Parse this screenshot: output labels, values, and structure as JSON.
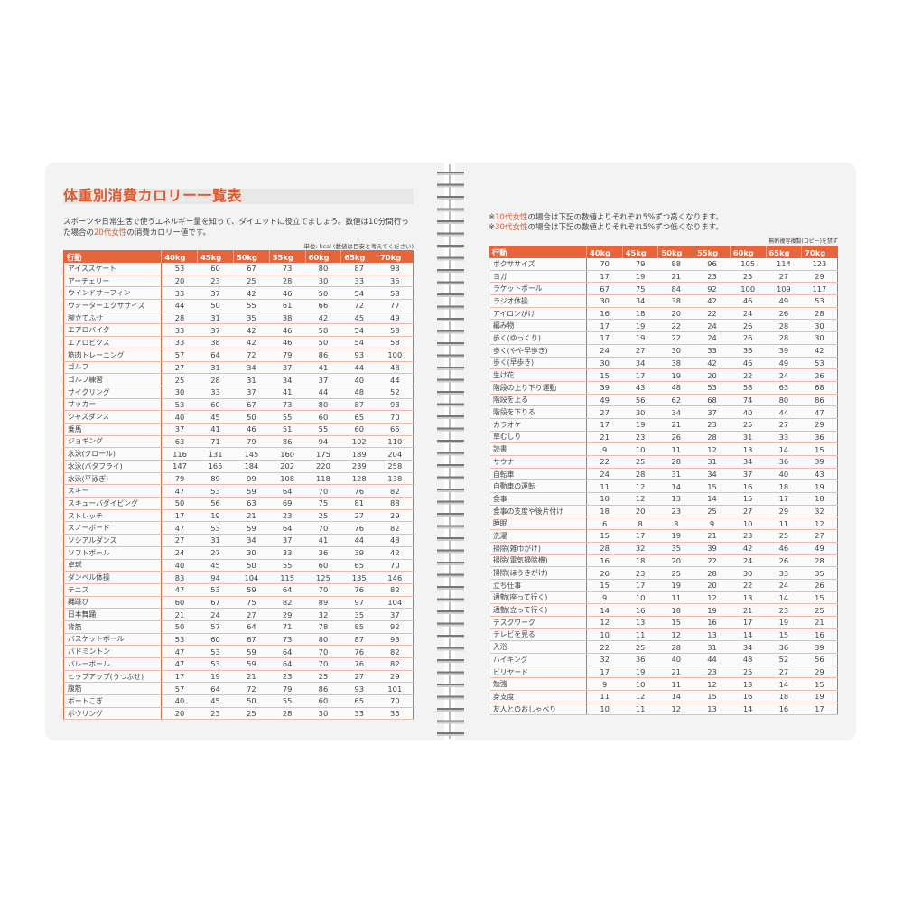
{
  "left_page": {
    "title": "体重別消費カロリー一覧表",
    "intro": [
      "スポーツや日常生活で使うエネルギー量を知って、ダイエットに役立てましょう。数値は10分間行った場合の",
      "20代女性",
      "の消費カロリー値です。"
    ],
    "unit": "単位: kcal (数値は目安と考えてください)"
  },
  "right_page": {
    "notes": [
      [
        "※",
        "10代女性",
        "の場合は下記の数値よりそれぞれ5%ずつ高くなります。"
      ],
      [
        "※",
        "30代女性",
        "の場合は下記の数値よりそれぞれ5%ずつ低くなります。"
      ]
    ],
    "copyright": "無断複写複製(コピー)を禁ず"
  },
  "left_table": {
    "header": [
      "行動",
      "40kg",
      "45kg",
      "50kg",
      "55kg",
      "60kg",
      "65kg",
      "70kg"
    ],
    "rows": [
      [
        "アイススケート",
        53,
        60,
        67,
        73,
        80,
        87,
        93
      ],
      [
        "アーチェリー",
        20,
        23,
        25,
        28,
        30,
        33,
        35
      ],
      [
        "ウインドサーフィン",
        33,
        37,
        42,
        46,
        50,
        54,
        58
      ],
      [
        "ウォーターエクササイズ",
        44,
        50,
        55,
        61,
        66,
        72,
        77
      ],
      [
        "腕立てふせ",
        28,
        31,
        35,
        38,
        42,
        45,
        49
      ],
      [
        "エアロバイク",
        33,
        37,
        42,
        46,
        50,
        54,
        58
      ],
      [
        "エアロビクス",
        33,
        38,
        42,
        46,
        50,
        54,
        58
      ],
      [
        "筋肉トレーニング",
        57,
        64,
        72,
        79,
        86,
        93,
        100
      ],
      [
        "ゴルフ",
        27,
        31,
        34,
        37,
        41,
        44,
        48
      ],
      [
        "ゴルフ練習",
        25,
        28,
        31,
        34,
        37,
        40,
        44
      ],
      [
        "サイクリング",
        30,
        33,
        37,
        41,
        44,
        48,
        52
      ],
      [
        "サッカー",
        53,
        60,
        67,
        73,
        80,
        87,
        93
      ],
      [
        "ジャズダンス",
        40,
        45,
        50,
        55,
        60,
        65,
        70
      ],
      [
        "乗馬",
        37,
        41,
        46,
        51,
        55,
        60,
        65
      ],
      [
        "ジョギング",
        63,
        71,
        79,
        86,
        94,
        102,
        110
      ],
      [
        "水泳(クロール)",
        116,
        131,
        145,
        160,
        175,
        189,
        204
      ],
      [
        "水泳(バタフライ)",
        147,
        165,
        184,
        202,
        220,
        239,
        258
      ],
      [
        "水泳(平泳ぎ)",
        79,
        89,
        99,
        108,
        118,
        128,
        138
      ],
      [
        "スキー",
        47,
        53,
        59,
        64,
        70,
        76,
        82
      ],
      [
        "スキューバダイビング",
        50,
        56,
        63,
        69,
        75,
        81,
        88
      ],
      [
        "ストレッチ",
        17,
        19,
        21,
        23,
        25,
        27,
        29
      ],
      [
        "スノーボード",
        47,
        53,
        59,
        64,
        70,
        76,
        82
      ],
      [
        "ソシアルダンス",
        27,
        31,
        34,
        37,
        41,
        44,
        48
      ],
      [
        "ソフトボール",
        24,
        27,
        30,
        33,
        36,
        39,
        42
      ],
      [
        "卓球",
        40,
        45,
        50,
        55,
        60,
        65,
        70
      ],
      [
        "ダンベル体操",
        83,
        94,
        104,
        115,
        125,
        135,
        146
      ],
      [
        "テニス",
        47,
        53,
        59,
        64,
        70,
        76,
        82
      ],
      [
        "縄跳び",
        60,
        67,
        75,
        82,
        89,
        97,
        104
      ],
      [
        "日本舞踊",
        21,
        24,
        27,
        29,
        32,
        35,
        37
      ],
      [
        "背筋",
        50,
        57,
        64,
        71,
        78,
        85,
        92
      ],
      [
        "バスケットボール",
        53,
        60,
        67,
        73,
        80,
        87,
        93
      ],
      [
        "バドミントン",
        47,
        53,
        59,
        64,
        70,
        76,
        82
      ],
      [
        "バレーボール",
        47,
        53,
        59,
        64,
        70,
        76,
        82
      ],
      [
        "ヒップアップ(うつぶせ)",
        17,
        19,
        21,
        23,
        25,
        27,
        29
      ],
      [
        "腹筋",
        57,
        64,
        72,
        79,
        86,
        93,
        101
      ],
      [
        "ボートこぎ",
        40,
        45,
        50,
        55,
        60,
        65,
        70
      ],
      [
        "ボウリング",
        20,
        23,
        25,
        28,
        30,
        33,
        35
      ]
    ]
  },
  "right_table": {
    "header": [
      "行動",
      "40kg",
      "45kg",
      "50kg",
      "55kg",
      "60kg",
      "65kg",
      "70kg"
    ],
    "rows": [
      [
        "ボクササイズ",
        70,
        79,
        88,
        96,
        105,
        114,
        123
      ],
      [
        "ヨガ",
        17,
        19,
        21,
        23,
        25,
        27,
        29
      ],
      [
        "ラケットボール",
        67,
        75,
        84,
        92,
        100,
        109,
        117
      ],
      [
        "ラジオ体操",
        30,
        34,
        38,
        42,
        46,
        49,
        53
      ],
      [
        "アイロンがけ",
        16,
        18,
        20,
        22,
        24,
        26,
        28
      ],
      [
        "編み物",
        17,
        19,
        22,
        24,
        26,
        28,
        30
      ],
      [
        "歩く(ゆっくり)",
        17,
        19,
        22,
        24,
        26,
        28,
        30
      ],
      [
        "歩く(やや早歩き)",
        24,
        27,
        30,
        33,
        36,
        39,
        42
      ],
      [
        "歩く(早歩き)",
        30,
        34,
        38,
        42,
        46,
        49,
        53
      ],
      [
        "生け花",
        15,
        17,
        19,
        20,
        22,
        24,
        26
      ],
      [
        "階段の上り下り運動",
        39,
        43,
        48,
        53,
        58,
        63,
        68
      ],
      [
        "階段を上る",
        49,
        56,
        62,
        68,
        74,
        80,
        86
      ],
      [
        "階段を下りる",
        27,
        30,
        34,
        37,
        40,
        44,
        47
      ],
      [
        "カラオケ",
        17,
        19,
        21,
        23,
        25,
        27,
        29
      ],
      [
        "草むしり",
        21,
        23,
        26,
        28,
        31,
        33,
        36
      ],
      [
        "読書",
        9,
        10,
        11,
        12,
        13,
        14,
        15
      ],
      [
        "サウナ",
        22,
        25,
        28,
        31,
        34,
        36,
        39
      ],
      [
        "自転車",
        24,
        28,
        31,
        34,
        37,
        40,
        43
      ],
      [
        "自動車の運転",
        11,
        12,
        14,
        15,
        16,
        18,
        19
      ],
      [
        "食事",
        10,
        12,
        13,
        14,
        15,
        17,
        18
      ],
      [
        "食事の支度や後片付け",
        18,
        20,
        23,
        25,
        27,
        29,
        32
      ],
      [
        "睡眠",
        6,
        8,
        8,
        9,
        10,
        11,
        12
      ],
      [
        "洗濯",
        15,
        17,
        19,
        21,
        23,
        25,
        27
      ],
      [
        "掃除(雑巾がけ)",
        28,
        32,
        35,
        39,
        42,
        46,
        49
      ],
      [
        "掃除(電気掃除機)",
        16,
        18,
        20,
        22,
        24,
        26,
        28
      ],
      [
        "掃除(ほうきがけ)",
        20,
        23,
        25,
        28,
        30,
        33,
        35
      ],
      [
        "立ち仕事",
        15,
        17,
        19,
        20,
        22,
        24,
        26
      ],
      [
        "通勤(座って行く)",
        9,
        10,
        11,
        12,
        13,
        14,
        15
      ],
      [
        "通勤(立って行く)",
        14,
        16,
        18,
        19,
        21,
        23,
        25
      ],
      [
        "デスクワーク",
        12,
        13,
        15,
        16,
        17,
        19,
        21
      ],
      [
        "テレビを見る",
        10,
        11,
        12,
        13,
        14,
        15,
        16
      ],
      [
        "入浴",
        22,
        25,
        28,
        31,
        34,
        36,
        39
      ],
      [
        "ハイキング",
        32,
        36,
        40,
        44,
        48,
        52,
        56
      ],
      [
        "ビリヤード",
        17,
        19,
        21,
        23,
        25,
        27,
        29
      ],
      [
        "勉強",
        9,
        10,
        11,
        12,
        13,
        14,
        15
      ],
      [
        "身支度",
        11,
        12,
        14,
        15,
        16,
        18,
        19
      ],
      [
        "友人とのおしゃべり",
        10,
        11,
        12,
        13,
        14,
        16,
        17
      ]
    ]
  }
}
